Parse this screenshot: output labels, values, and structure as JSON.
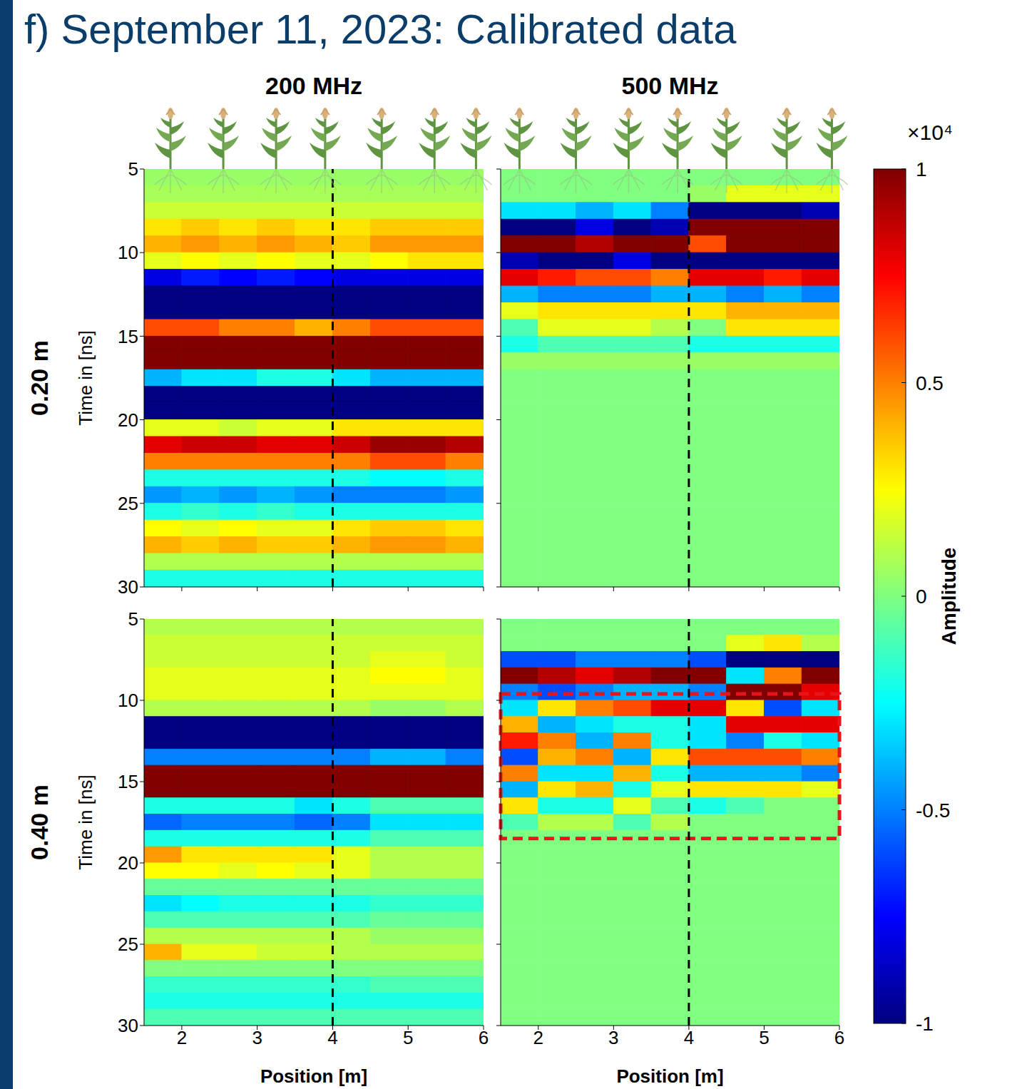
{
  "title": "f) September 11, 2023: Calibrated data",
  "colorbar": {
    "range": [
      -1,
      1
    ],
    "ticks": [
      -1,
      -0.5,
      0,
      0.5,
      1
    ],
    "label": "Amplitude",
    "multiplier": "×10⁴"
  },
  "chart_data": [
    {
      "type": "heatmap",
      "title": "200 MHz",
      "row_label": "0.20 m",
      "y_label": "Time in [ns]",
      "xlim": [
        1.5,
        6
      ],
      "xticks": [
        2,
        3,
        4,
        5,
        6
      ],
      "ylim": [
        5,
        30
      ],
      "yticks": [
        5,
        10,
        15,
        20,
        25,
        30
      ],
      "tick_labels": "y",
      "reference_x": 4,
      "plant_positions": [
        1.85,
        2.55,
        3.25,
        3.9,
        4.65,
        5.35,
        5.9
      ],
      "x_edges": [
        1.5,
        2,
        2.5,
        3,
        3.5,
        4,
        4.5,
        5,
        5.5,
        6
      ],
      "y_edges": [
        5,
        6,
        7,
        8,
        9,
        10,
        11,
        12,
        13,
        14,
        15,
        16,
        17,
        18,
        19,
        20,
        21,
        22,
        23,
        24,
        25,
        26,
        27,
        28,
        29,
        30
      ],
      "cells": [
        [
          0.05,
          0.05,
          0.05,
          0.05,
          0.05,
          0.05,
          0.05,
          0.05,
          0.05
        ],
        [
          0.08,
          0.08,
          0.08,
          0.08,
          0.08,
          0.08,
          0.08,
          0.08,
          0.08
        ],
        [
          0.15,
          0.15,
          0.15,
          0.15,
          0.15,
          0.15,
          0.15,
          0.15,
          0.15
        ],
        [
          0.3,
          0.35,
          0.3,
          0.35,
          0.3,
          0.3,
          0.35,
          0.35,
          0.35
        ],
        [
          0.4,
          0.45,
          0.4,
          0.45,
          0.4,
          0.35,
          0.45,
          0.45,
          0.45
        ],
        [
          0.2,
          0.25,
          0.2,
          0.25,
          0.2,
          0.2,
          0.25,
          0.3,
          0.3
        ],
        [
          -0.8,
          -0.7,
          -0.75,
          -0.7,
          -0.75,
          -0.8,
          -0.8,
          -0.8,
          -0.8
        ],
        [
          -1,
          -1,
          -1,
          -1,
          -1,
          -1,
          -1,
          -1,
          -1
        ],
        [
          -1,
          -1,
          -1,
          -1,
          -1,
          -1,
          -1,
          -1,
          -1
        ],
        [
          0.6,
          0.6,
          0.5,
          0.5,
          0.4,
          0.5,
          0.6,
          0.6,
          0.6
        ],
        [
          1,
          1,
          1,
          1,
          1,
          1,
          1,
          1,
          1
        ],
        [
          1,
          1,
          1,
          1,
          1,
          1,
          1,
          1,
          1
        ],
        [
          -0.4,
          -0.3,
          -0.3,
          -0.2,
          -0.2,
          -0.3,
          -0.4,
          -0.4,
          -0.4
        ],
        [
          -1,
          -1,
          -1,
          -1,
          -1,
          -1,
          -1,
          -1,
          -1
        ],
        [
          -1,
          -1,
          -1,
          -1,
          -1,
          -1,
          -1,
          -1,
          -1
        ],
        [
          0.2,
          0.2,
          0.15,
          0.2,
          0.2,
          0.3,
          0.3,
          0.3,
          0.3
        ],
        [
          0.8,
          0.85,
          0.85,
          0.8,
          0.8,
          0.85,
          0.95,
          0.95,
          0.9
        ],
        [
          0.5,
          0.5,
          0.5,
          0.5,
          0.5,
          0.5,
          0.6,
          0.6,
          0.5
        ],
        [
          -0.2,
          -0.2,
          -0.2,
          -0.2,
          -0.2,
          -0.2,
          -0.25,
          -0.25,
          -0.2
        ],
        [
          -0.45,
          -0.4,
          -0.45,
          -0.4,
          -0.45,
          -0.5,
          -0.5,
          -0.5,
          -0.45
        ],
        [
          -0.2,
          -0.15,
          -0.2,
          -0.15,
          -0.2,
          -0.2,
          -0.2,
          -0.2,
          -0.2
        ],
        [
          0.25,
          0.2,
          0.25,
          0.2,
          0.2,
          0.3,
          0.35,
          0.35,
          0.3
        ],
        [
          0.4,
          0.35,
          0.4,
          0.35,
          0.35,
          0.4,
          0.45,
          0.45,
          0.4
        ],
        [
          0.1,
          0.1,
          0.1,
          0.1,
          0.1,
          0.1,
          0.1,
          0.1,
          0.1
        ],
        [
          -0.2,
          -0.2,
          -0.2,
          -0.2,
          -0.2,
          -0.2,
          -0.2,
          -0.2,
          -0.2
        ]
      ]
    },
    {
      "type": "heatmap",
      "title": "500 MHz",
      "xlim": [
        1.5,
        6
      ],
      "xticks": [
        2,
        3,
        4,
        5,
        6
      ],
      "ylim": [
        5,
        30
      ],
      "yticks": [
        5,
        10,
        15,
        20,
        25,
        30
      ],
      "tick_labels": false,
      "reference_x": 4,
      "plant_positions": [
        1.75,
        2.5,
        3.2,
        3.85,
        4.5,
        5.3,
        5.9
      ],
      "x_edges": [
        1.5,
        2,
        2.5,
        3,
        3.5,
        4,
        4.5,
        5,
        5.5,
        6
      ],
      "y_edges": [
        5,
        6,
        7,
        8,
        9,
        10,
        11,
        12,
        13,
        14,
        15,
        16,
        17,
        18,
        19,
        20,
        21,
        22,
        23,
        24,
        25,
        26,
        27,
        28,
        29,
        30
      ],
      "cells": [
        [
          0,
          0,
          0,
          0,
          0,
          0,
          0,
          0,
          0
        ],
        [
          0,
          0,
          0,
          0,
          0,
          0.05,
          0.2,
          0.2,
          0.2
        ],
        [
          -0.3,
          -0.3,
          -0.4,
          -0.3,
          -0.5,
          -1,
          -1,
          -1,
          -0.9
        ],
        [
          -1,
          -1,
          -0.8,
          -1,
          -0.9,
          1,
          1,
          1,
          1
        ],
        [
          1,
          1,
          0.9,
          1,
          1,
          0.6,
          1,
          1,
          1
        ],
        [
          -0.9,
          -1,
          -1,
          -0.8,
          -1,
          -1,
          -1,
          -1,
          -1
        ],
        [
          0.8,
          0.7,
          0.6,
          0.6,
          0.5,
          0.8,
          0.8,
          0.7,
          0.8
        ],
        [
          -0.4,
          -0.5,
          -0.5,
          -0.5,
          -0.4,
          -0.4,
          -0.5,
          -0.4,
          -0.5
        ],
        [
          0.2,
          0.3,
          0.3,
          0.3,
          0.3,
          0.3,
          0.4,
          0.4,
          0.4
        ],
        [
          -0.1,
          0.2,
          0.2,
          0.2,
          0.1,
          0,
          0.3,
          0.3,
          0.3
        ],
        [
          -0.2,
          -0.1,
          -0.1,
          -0.1,
          -0.1,
          -0.2,
          -0.2,
          -0.2,
          -0.2
        ],
        [
          0.05,
          0.05,
          0.05,
          0.05,
          0.05,
          0.05,
          0.05,
          0.05,
          0.05
        ],
        [
          0,
          0,
          0,
          0,
          0,
          0,
          0,
          0,
          0
        ],
        [
          0,
          0,
          0,
          0,
          0,
          0,
          0,
          0,
          0
        ],
        [
          0,
          0,
          0,
          0,
          0,
          0,
          0,
          0,
          0
        ],
        [
          0,
          0,
          0,
          0,
          0,
          0,
          0,
          0,
          0
        ],
        [
          0,
          0,
          0,
          0,
          0,
          0,
          0,
          0,
          0
        ],
        [
          0,
          0,
          0,
          0,
          0,
          0,
          0,
          0,
          0
        ],
        [
          0,
          0,
          0,
          0,
          0,
          0,
          0,
          0,
          0
        ],
        [
          0,
          0,
          0,
          0,
          0,
          0,
          0,
          0,
          0
        ],
        [
          0,
          0,
          0,
          0,
          0,
          0,
          0,
          0,
          0
        ],
        [
          0,
          0,
          0,
          0,
          0,
          0,
          0,
          0,
          0
        ],
        [
          0,
          0,
          0,
          0,
          0,
          0,
          0,
          0,
          0
        ],
        [
          0,
          0,
          0,
          0,
          0,
          0,
          0,
          0,
          0
        ],
        [
          0,
          0,
          0,
          0,
          0,
          0,
          0,
          0,
          0
        ]
      ]
    },
    {
      "type": "heatmap",
      "row_label": "0.40 m",
      "x_label": "Position [m]",
      "y_label": "Time in [ns]",
      "xlim": [
        1.5,
        6
      ],
      "xticks": [
        2,
        3,
        4,
        5,
        6
      ],
      "ylim": [
        5,
        30
      ],
      "yticks": [
        5,
        10,
        15,
        20,
        25,
        30
      ],
      "tick_labels": true,
      "reference_x": 4,
      "x_edges": [
        1.5,
        2,
        2.5,
        3,
        3.5,
        4,
        4.5,
        5,
        5.5,
        6
      ],
      "y_edges": [
        5,
        6,
        7,
        8,
        9,
        10,
        11,
        12,
        13,
        14,
        15,
        16,
        17,
        18,
        19,
        20,
        21,
        22,
        23,
        24,
        25,
        26,
        27,
        28,
        29,
        30
      ],
      "cells": [
        [
          0.1,
          0.1,
          0.1,
          0.1,
          0.1,
          0.1,
          0.1,
          0.1,
          0.1
        ],
        [
          0.15,
          0.15,
          0.15,
          0.15,
          0.15,
          0.15,
          0.15,
          0.15,
          0.15
        ],
        [
          0.15,
          0.15,
          0.15,
          0.15,
          0.15,
          0.15,
          0.2,
          0.2,
          0.15
        ],
        [
          0.2,
          0.2,
          0.2,
          0.2,
          0.2,
          0.2,
          0.25,
          0.25,
          0.2
        ],
        [
          0.2,
          0.2,
          0.2,
          0.2,
          0.2,
          0.2,
          0.2,
          0.2,
          0.2
        ],
        [
          0.1,
          0.1,
          0.1,
          0.1,
          0.1,
          0.1,
          0.05,
          0.05,
          0.1
        ],
        [
          -1,
          -1,
          -1,
          -1,
          -1,
          -1,
          -1,
          -1,
          -1
        ],
        [
          -1,
          -1,
          -1,
          -1,
          -1,
          -1,
          -1,
          -1,
          -1
        ],
        [
          -0.5,
          -0.5,
          -0.5,
          -0.5,
          -0.5,
          -0.5,
          -0.4,
          -0.4,
          -0.5
        ],
        [
          1,
          1,
          1,
          1,
          1,
          1,
          1,
          1,
          1
        ],
        [
          1,
          1,
          1,
          1,
          1,
          1,
          1,
          1,
          1
        ],
        [
          -0.2,
          -0.2,
          -0.2,
          -0.2,
          -0.3,
          -0.2,
          -0.1,
          -0.1,
          -0.1
        ],
        [
          -0.55,
          -0.5,
          -0.5,
          -0.5,
          -0.55,
          -0.5,
          -0.3,
          -0.3,
          -0.3
        ],
        [
          -0.2,
          -0.2,
          -0.2,
          -0.2,
          -0.2,
          -0.2,
          -0.1,
          -0.1,
          -0.1
        ],
        [
          0.45,
          0.3,
          0.3,
          0.3,
          0.3,
          0.2,
          0.1,
          0.1,
          0.1
        ],
        [
          0.25,
          0.25,
          0.2,
          0.25,
          0.2,
          0.2,
          0.1,
          0.1,
          0.1
        ],
        [
          -0.05,
          -0.05,
          -0.05,
          -0.05,
          -0.05,
          -0.05,
          -0.05,
          -0.05,
          -0.05
        ],
        [
          -0.3,
          -0.25,
          -0.2,
          -0.2,
          -0.2,
          -0.2,
          -0.15,
          -0.15,
          -0.15
        ],
        [
          -0.1,
          -0.1,
          -0.1,
          -0.1,
          -0.1,
          -0.1,
          -0.05,
          -0.05,
          -0.05
        ],
        [
          0.1,
          0.1,
          0.1,
          0.1,
          0.1,
          0.1,
          0.05,
          0.05,
          0.05
        ],
        [
          0.4,
          0.2,
          0.2,
          0.15,
          0.15,
          0.1,
          0.1,
          0.1,
          0.1
        ],
        [
          0,
          0,
          0,
          0,
          0,
          0,
          0,
          0,
          0
        ],
        [
          -0.15,
          -0.15,
          -0.15,
          -0.15,
          -0.15,
          -0.15,
          -0.1,
          -0.1,
          -0.1
        ],
        [
          -0.2,
          -0.2,
          -0.2,
          -0.2,
          -0.2,
          -0.2,
          -0.2,
          -0.2,
          -0.2
        ],
        [
          -0.1,
          -0.1,
          -0.1,
          -0.1,
          -0.1,
          -0.1,
          -0.1,
          -0.1,
          -0.1
        ]
      ]
    },
    {
      "type": "heatmap",
      "x_label": "Position [m]",
      "xlim": [
        1.5,
        6
      ],
      "xticks": [
        2,
        3,
        4,
        5,
        6
      ],
      "ylim": [
        5,
        30
      ],
      "yticks": [
        5,
        10,
        15,
        20,
        25,
        30
      ],
      "tick_labels": "x",
      "reference_x": 4,
      "highlight": {
        "x": [
          1.5,
          6
        ],
        "y": [
          9.6,
          18.5
        ],
        "color": "#e8141c"
      },
      "x_edges": [
        1.5,
        2,
        2.5,
        3,
        3.5,
        4,
        4.5,
        5,
        5.5,
        6
      ],
      "y_edges": [
        5,
        6,
        7,
        8,
        9,
        10,
        11,
        12,
        13,
        14,
        15,
        16,
        17,
        18,
        19,
        20,
        21,
        22,
        23,
        24,
        25,
        26,
        27,
        28,
        29,
        30
      ],
      "cells": [
        [
          0,
          0,
          0,
          0,
          0,
          0,
          0,
          0,
          0
        ],
        [
          0,
          0,
          0,
          0,
          0,
          0,
          0.2,
          0.3,
          0.1
        ],
        [
          -0.6,
          -0.6,
          -0.5,
          -0.5,
          -0.5,
          -0.6,
          -1,
          -1,
          -1
        ],
        [
          1,
          0.9,
          0.8,
          0.9,
          1,
          1,
          -0.3,
          0.5,
          1
        ],
        [
          -0.5,
          -0.6,
          -0.5,
          -0.4,
          -0.4,
          -0.5,
          1,
          1,
          0.8
        ],
        [
          -0.3,
          0.3,
          0.5,
          0.6,
          0.8,
          0.8,
          0.3,
          -0.6,
          -0.3
        ],
        [
          0.4,
          -0.4,
          -0.3,
          -0.2,
          -0.2,
          -0.3,
          0.8,
          0.8,
          0.8
        ],
        [
          0.7,
          0.5,
          -0.4,
          0.5,
          -0.2,
          -0.3,
          -0.5,
          -0.2,
          -0.3
        ],
        [
          -0.6,
          0.4,
          0.5,
          -0.4,
          0.3,
          0.6,
          0.6,
          0.6,
          0.5
        ],
        [
          0.5,
          -0.3,
          -0.3,
          0.4,
          -0.2,
          -0.4,
          -0.4,
          -0.4,
          -0.5
        ],
        [
          -0.4,
          0.3,
          0.4,
          -0.2,
          0.2,
          0.3,
          0.3,
          0.3,
          0.2
        ],
        [
          0.3,
          -0.2,
          -0.2,
          0.2,
          -0.1,
          -0.2,
          -0.1,
          0,
          0
        ],
        [
          -0.1,
          0.1,
          0.1,
          -0.1,
          0.1,
          0,
          0,
          0,
          0
        ],
        [
          0,
          0,
          0,
          0,
          0,
          0,
          0,
          0,
          0
        ],
        [
          0,
          0,
          0,
          0,
          0,
          0,
          0,
          0,
          0
        ],
        [
          0,
          0,
          0,
          0,
          0,
          0,
          0,
          0,
          0
        ],
        [
          0,
          0,
          0,
          0,
          0,
          0,
          0,
          0,
          0
        ],
        [
          0,
          0,
          0,
          0,
          0,
          0,
          0,
          0,
          0
        ],
        [
          0,
          0,
          0,
          0,
          0,
          0,
          0,
          0,
          0
        ],
        [
          0,
          0,
          0,
          0,
          0,
          0,
          0,
          0,
          0
        ],
        [
          0,
          0,
          0,
          0,
          0,
          0,
          0,
          0,
          0
        ],
        [
          0,
          0,
          0,
          0,
          0,
          0,
          0,
          0,
          0
        ],
        [
          0,
          0,
          0,
          0,
          0,
          0,
          0,
          0,
          0
        ],
        [
          0,
          0,
          0,
          0,
          0,
          0,
          0,
          0,
          0
        ],
        [
          0,
          0,
          0,
          0,
          0,
          0,
          0,
          0,
          0
        ]
      ]
    }
  ]
}
